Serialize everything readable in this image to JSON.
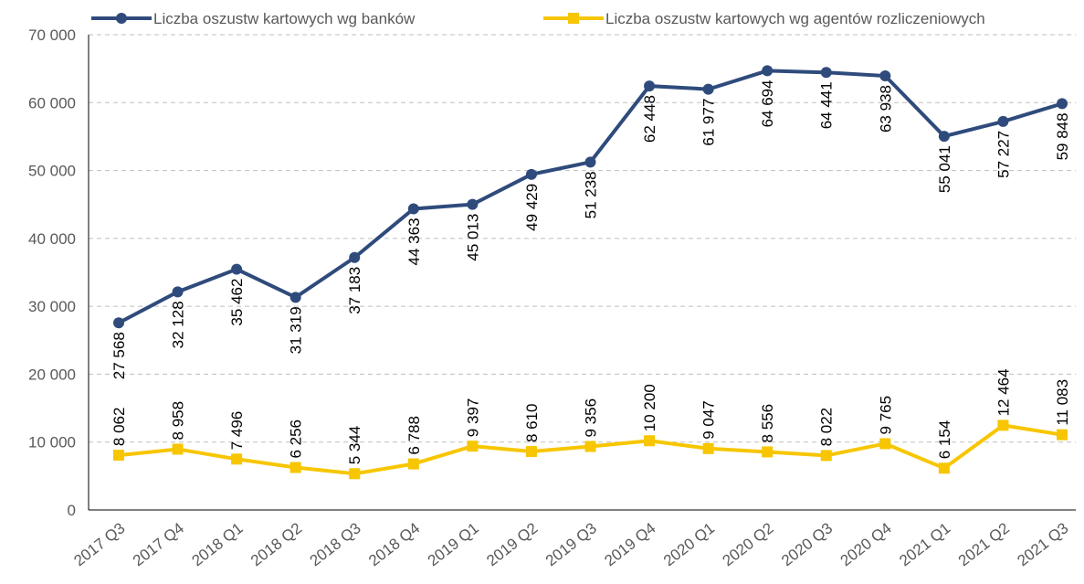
{
  "chart_data": {
    "type": "line",
    "categories": [
      "2017 Q3",
      "2017 Q4",
      "2018 Q1",
      "2018 Q2",
      "2018 Q3",
      "2018 Q4",
      "2019 Q1",
      "2019 Q2",
      "2019 Q3",
      "2019 Q4",
      "2020 Q1",
      "2020 Q2",
      "2020 Q3",
      "2020 Q4",
      "2021 Q1",
      "2021 Q2",
      "2021 Q3"
    ],
    "series": [
      {
        "name": "Liczba oszustw kartowych wg banków",
        "color": "#2f4b7c",
        "values": [
          27568,
          32128,
          35462,
          31319,
          37183,
          44363,
          45013,
          49429,
          51238,
          62448,
          61977,
          64694,
          64441,
          63938,
          55041,
          57227,
          59848
        ],
        "value_labels": [
          "27 568",
          "32 128",
          "35 462",
          "31 319",
          "37 183",
          "44 363",
          "45 013",
          "49 429",
          "51 238",
          "62 448",
          "61 977",
          "64 694",
          "64 441",
          "63 938",
          "55 041",
          "57 227",
          "59 848"
        ]
      },
      {
        "name": "Liczba oszustw kartowych wg agentów rozliczeniowych",
        "color": "#f7c600",
        "values": [
          8062,
          8958,
          7496,
          6256,
          5344,
          6788,
          9397,
          8610,
          9356,
          10200,
          9047,
          8556,
          8022,
          9765,
          6154,
          12464,
          11083
        ],
        "value_labels": [
          "8 062",
          "8 958",
          "7 496",
          "6 256",
          "5 344",
          "6 788",
          "9 397",
          "8 610",
          "9 356",
          "10 200",
          "9 047",
          "8 556",
          "8 022",
          "9 765",
          "6 154",
          "12 464",
          "11 083"
        ]
      }
    ],
    "ylim": [
      0,
      70000
    ],
    "yticks": [
      0,
      {
        "value": 10000,
        "label": "10 000"
      },
      {
        "value": 20000,
        "label": "20 000"
      },
      {
        "value": 30000,
        "label": "30 000"
      },
      {
        "value": 40000,
        "label": "40 000"
      },
      {
        "value": 50000,
        "label": "50 000"
      },
      {
        "value": 60000,
        "label": "60 000"
      },
      {
        "value": 70000,
        "label": "70 000"
      }
    ],
    "grid": true,
    "legend": "top"
  }
}
